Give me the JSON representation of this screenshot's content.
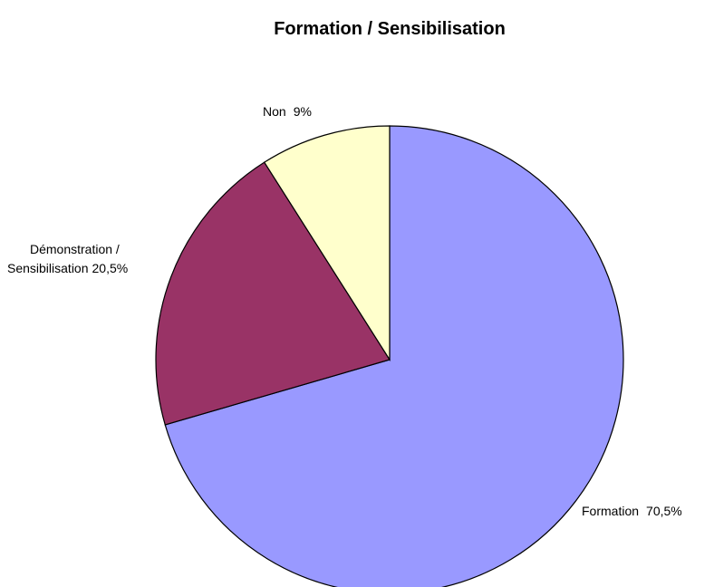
{
  "chart_data": {
    "type": "pie",
    "title": "Formation / Sensibilisation",
    "categories": [
      "Formation",
      "Démonstration / Sensibilisation",
      "Non"
    ],
    "values": [
      70.5,
      20.5,
      9
    ],
    "value_labels": [
      "70,5%",
      "20,5%",
      "9%"
    ],
    "colors": [
      "#9999ff",
      "#993366",
      "#ffffcc"
    ]
  }
}
